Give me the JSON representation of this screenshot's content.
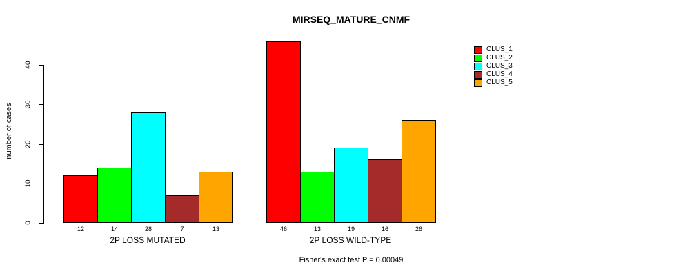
{
  "chart_data": {
    "type": "bar",
    "title": "MIRSEQ_MATURE_CNMF",
    "ylabel": "number of cases",
    "subtitle": "Fisher's exact test P = 0.00049",
    "ylim": [
      0,
      46
    ],
    "yticks": [
      0,
      10,
      20,
      30,
      40
    ],
    "grid": false,
    "legend_position": "right",
    "background_color": "#FFFFFF",
    "bar_border_color": "#000000",
    "categories": [
      "2P LOSS MUTATED",
      "2P LOSS WILD-TYPE"
    ],
    "groups": [
      {
        "label": "2P LOSS MUTATED",
        "values": [
          12,
          14,
          28,
          7,
          13
        ]
      },
      {
        "label": "2P LOSS WILD-TYPE",
        "values": [
          46,
          13,
          19,
          16,
          26
        ]
      }
    ],
    "series": [
      {
        "name": "CLUS_1",
        "color": "#FF0000"
      },
      {
        "name": "CLUS_2",
        "color": "#00FF00"
      },
      {
        "name": "CLUS_3",
        "color": "#00FFFF"
      },
      {
        "name": "CLUS_4",
        "color": "#A52A2A"
      },
      {
        "name": "CLUS_5",
        "color": "#FFA500"
      }
    ]
  }
}
